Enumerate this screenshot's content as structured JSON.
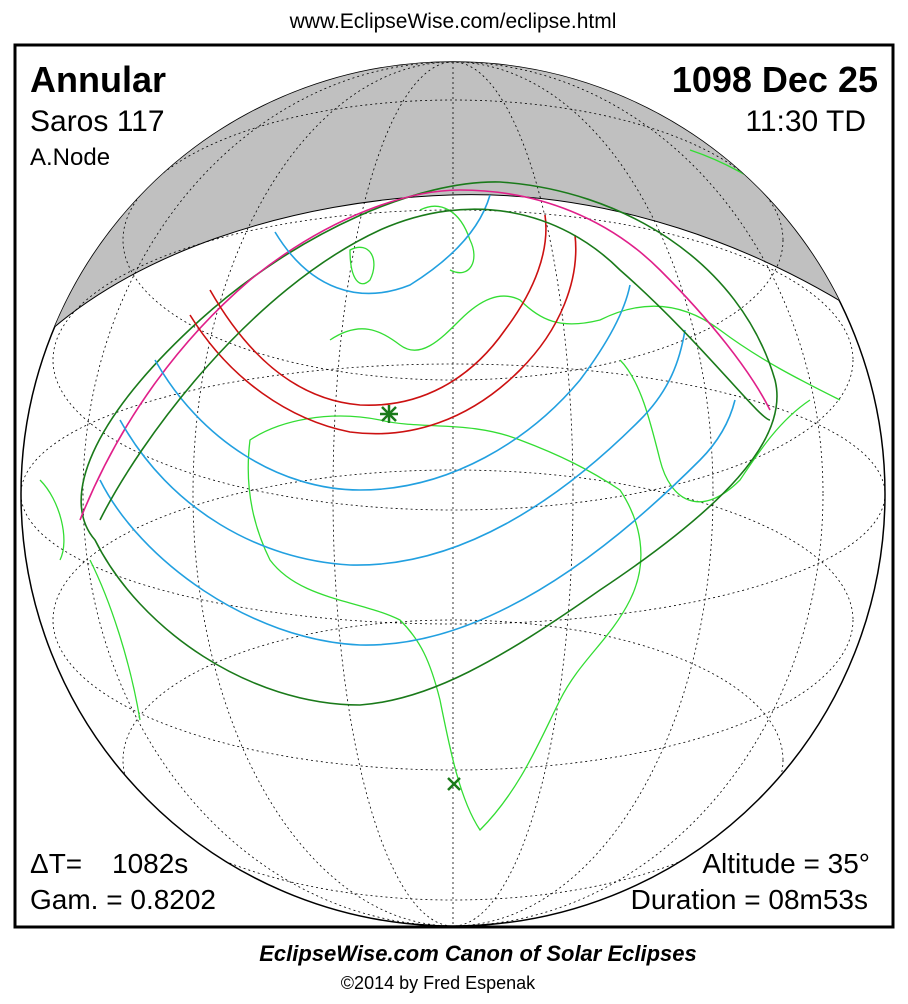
{
  "header": {
    "url": "www.EclipseWise.com/eclipse.html"
  },
  "info": {
    "type": "Annular",
    "saros": "Saros 117",
    "node": "A.Node",
    "date": "1098 Dec 25",
    "time": "11:30 TD"
  },
  "stats": {
    "delta_t_label": "ΔT=",
    "delta_t_value": "1082s",
    "gamma": "Gam. = 0.8202",
    "altitude": "Altitude = 35°",
    "duration": "Duration = 08m53s"
  },
  "footer": {
    "title": "EclipseWise.com Canon of Solar Eclipses",
    "credit": "©2014 by Fred Espenak"
  }
}
